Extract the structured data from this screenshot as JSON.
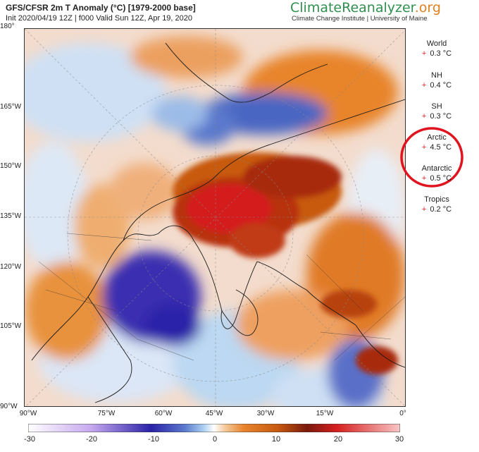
{
  "header": {
    "title": "GFS/CFSR 2m T Anomaly (°C) [1979-2000 base]",
    "subtitle": "Init 2020/04/19 12Z | f000 Valid Sun 12Z, Apr 19, 2020",
    "brand_main": "ClimateReanalyzer",
    "brand_suffix": ".org",
    "institution": "Climate Change Institute | University of Maine"
  },
  "map": {
    "projection": "north-polar-stereographic",
    "left_axis_labels": [
      "180°",
      "165°W",
      "150°W",
      "135°W",
      "120°W",
      "105°W",
      "90°W"
    ],
    "bottom_axis_labels": [
      "90°W",
      "75°W",
      "60°W",
      "45°W",
      "30°W",
      "15°W",
      "0°"
    ],
    "annotation_circle_color": "#e0141e"
  },
  "sidebar": {
    "regions": [
      {
        "name": "World",
        "sign": "+",
        "value": "0.3 °C"
      },
      {
        "name": "NH",
        "sign": "+",
        "value": "0.4 °C"
      },
      {
        "name": "SH",
        "sign": "+",
        "value": "0.3 °C"
      },
      {
        "name": "Arctic",
        "sign": "+",
        "value": "4.5 °C"
      },
      {
        "name": "Antarctic",
        "sign": "+",
        "value": "0.5 °C"
      },
      {
        "name": "Tropics",
        "sign": "+",
        "value": "0.2 °C"
      }
    ]
  },
  "colorbar": {
    "ticks": [
      "-30",
      "-20",
      "-10",
      "0",
      "10",
      "20",
      "30"
    ],
    "range": [
      -30,
      30
    ],
    "colors": {
      "m30": "#ffffff",
      "m20": "#c6a8ee",
      "m10": "#2a22a8",
      "m5": "#5a78cc",
      "m2": "#a9cdf0",
      "zero": "#ffffff",
      "p2": "#f5c99a",
      "p5": "#e8842c",
      "p10": "#c85a10",
      "p15": "#7a1a0c",
      "p20": "#d62020",
      "p30": "#f8c6c6"
    }
  }
}
